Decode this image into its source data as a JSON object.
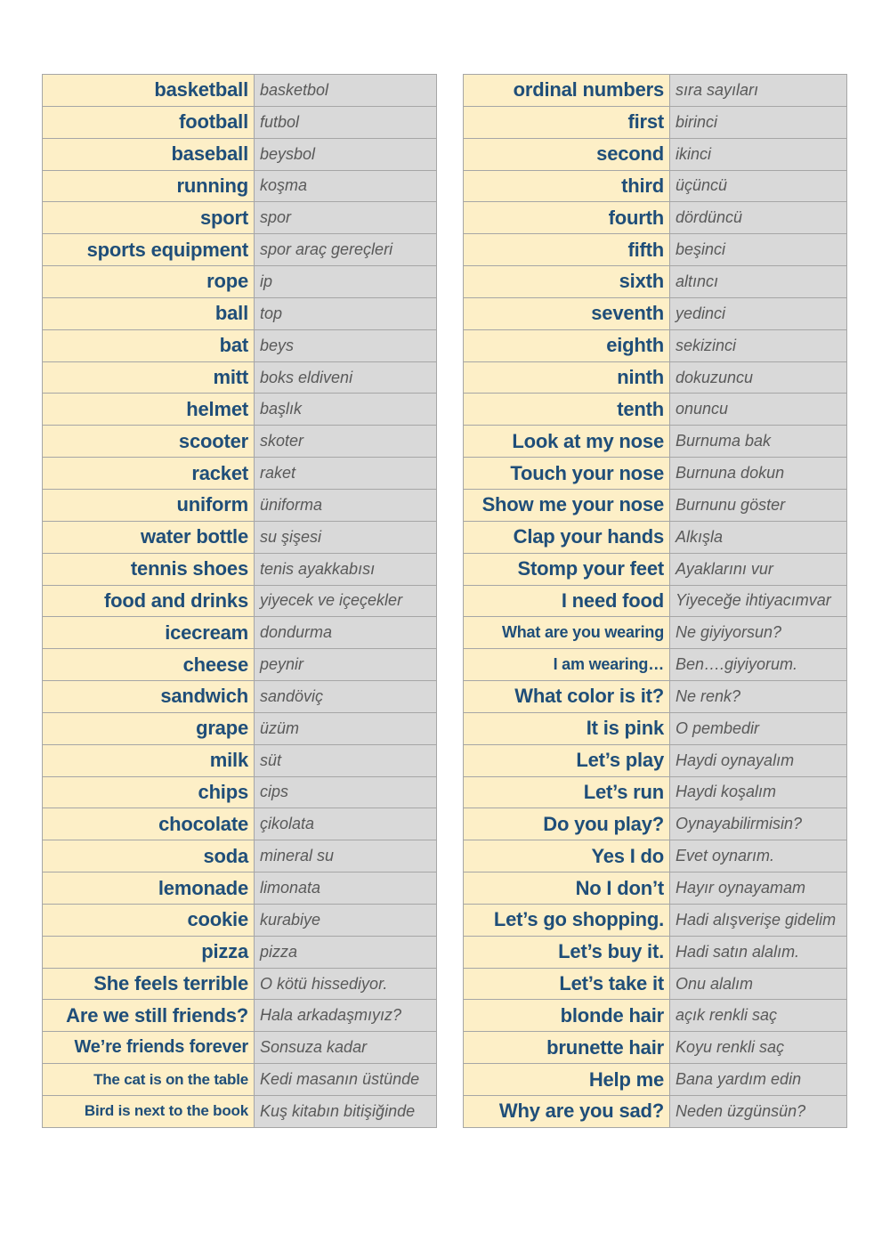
{
  "left_column": [
    {
      "en": "basketball",
      "tr": "basketbol"
    },
    {
      "en": "football",
      "tr": "futbol"
    },
    {
      "en": "baseball",
      "tr": "beysbol"
    },
    {
      "en": "running",
      "tr": "koşma"
    },
    {
      "en": "sport",
      "tr": "spor"
    },
    {
      "en": "sports equipment",
      "tr": "spor araç gereçleri"
    },
    {
      "en": "rope",
      "tr": "ip"
    },
    {
      "en": "ball",
      "tr": "top"
    },
    {
      "en": "bat",
      "tr": "beys"
    },
    {
      "en": "mitt",
      "tr": "boks eldiveni"
    },
    {
      "en": "helmet",
      "tr": "başlık"
    },
    {
      "en": "scooter",
      "tr": "skoter"
    },
    {
      "en": "racket",
      "tr": "raket"
    },
    {
      "en": "uniform",
      "tr": "üniforma"
    },
    {
      "en": "water bottle",
      "tr": "su şişesi"
    },
    {
      "en": "tennis shoes",
      "tr": "tenis ayakkabısı"
    },
    {
      "en": "food and drinks",
      "tr": "yiyecek ve içeçekler"
    },
    {
      "en": "icecream",
      "tr": "dondurma"
    },
    {
      "en": "cheese",
      "tr": "peynir"
    },
    {
      "en": "sandwich",
      "tr": "sandöviç"
    },
    {
      "en": "grape",
      "tr": "üzüm"
    },
    {
      "en": "milk",
      "tr": "süt"
    },
    {
      "en": "chips",
      "tr": "cips"
    },
    {
      "en": "chocolate",
      "tr": "çikolata"
    },
    {
      "en": "soda",
      "tr": "mineral su"
    },
    {
      "en": "lemonade",
      "tr": "limonata"
    },
    {
      "en": "cookie",
      "tr": "kurabiye"
    },
    {
      "en": "pizza",
      "tr": "pizza"
    },
    {
      "en": "She feels terrible",
      "tr": "O kötü hissediyor."
    },
    {
      "en": "Are we still friends?",
      "tr": "Hala arkadaşmıyız?"
    },
    {
      "en": "We’re friends forever",
      "tr": "Sonsuza kadar"
    },
    {
      "en": "The cat is on the table",
      "tr": "Kedi masanın üstünde"
    },
    {
      "en": "Bird is next to the book",
      "tr": "Kuş kitabın bitişiğinde"
    }
  ],
  "right_column": [
    {
      "en": "ordinal numbers",
      "tr": "sıra sayıları"
    },
    {
      "en": "first",
      "tr": "birinci"
    },
    {
      "en": "second",
      "tr": "ikinci"
    },
    {
      "en": "third",
      "tr": "üçüncü"
    },
    {
      "en": "fourth",
      "tr": "dördüncü"
    },
    {
      "en": "fifth",
      "tr": "beşinci"
    },
    {
      "en": "sixth",
      "tr": "altıncı"
    },
    {
      "en": "seventh",
      "tr": "yedinci"
    },
    {
      "en": "eighth",
      "tr": "sekizinci"
    },
    {
      "en": "ninth",
      "tr": "dokuzuncu"
    },
    {
      "en": "tenth",
      "tr": "onuncu"
    },
    {
      "en": "Look at my nose",
      "tr": "Burnuma bak"
    },
    {
      "en": "Touch your nose",
      "tr": "Burnuna dokun"
    },
    {
      "en": "Show me your nose",
      "tr": "Burnunu göster"
    },
    {
      "en": "Clap your hands",
      "tr": "Alkışla"
    },
    {
      "en": "Stomp your feet",
      "tr": "Ayaklarını vur"
    },
    {
      "en": "I need  food",
      "tr": "Yiyeceğe ihtiyacımvar"
    },
    {
      "en": "What are you wearing",
      "tr": "Ne giyiyorsun?"
    },
    {
      "en": "I am wearing…",
      "tr": "Ben….giyiyorum."
    },
    {
      "en": "What color is it?",
      "tr": "Ne renk?"
    },
    {
      "en": "It is pink",
      "tr": "O pembedir"
    },
    {
      "en": "Let’s play",
      "tr": "Haydi oynayalım"
    },
    {
      "en": "Let’s run",
      "tr": "Haydi koşalım"
    },
    {
      "en": "Do you play?",
      "tr": "Oynayabilirmisin?"
    },
    {
      "en": "Yes  I do",
      "tr": "Evet oynarım."
    },
    {
      "en": "No I don’t",
      "tr": "Hayır oynayamam"
    },
    {
      "en": "Let’s go shopping.",
      "tr": "Hadi alışverişe gidelim"
    },
    {
      "en": "Let’s buy it.",
      "tr": "Hadi satın alalım."
    },
    {
      "en": "Let’s take it",
      "tr": "Onu alalım"
    },
    {
      "en": "blonde hair",
      "tr": "açık renkli saç"
    },
    {
      "en": "brunette hair",
      "tr": "Koyu renkli saç"
    },
    {
      "en": "Help me",
      "tr": "Bana yardım edin"
    },
    {
      "en": "Why are you sad?",
      "tr": "Neden üzgünsün?"
    }
  ],
  "colors": {
    "english_cell_bg": "#fdefc7",
    "english_text": "#1f4e79",
    "turkish_cell_bg": "#d9d9d9",
    "turkish_text": "#595959",
    "border": "#a6a6a6"
  }
}
